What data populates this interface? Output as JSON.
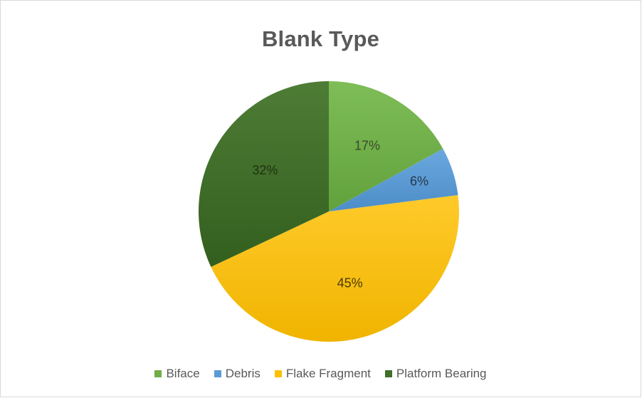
{
  "chart_data": {
    "type": "pie",
    "title": "Blank Type",
    "categories": [
      "Biface",
      "Debris",
      "Flake Fragment",
      "Platform Bearing"
    ],
    "values": [
      17,
      6,
      45,
      32
    ],
    "labels": [
      "17%",
      "6%",
      "45%",
      "32%"
    ],
    "colors": [
      "#70ad47",
      "#5b9bd5",
      "#ffc000",
      "#3f6f2a"
    ],
    "legend_position": "bottom"
  }
}
